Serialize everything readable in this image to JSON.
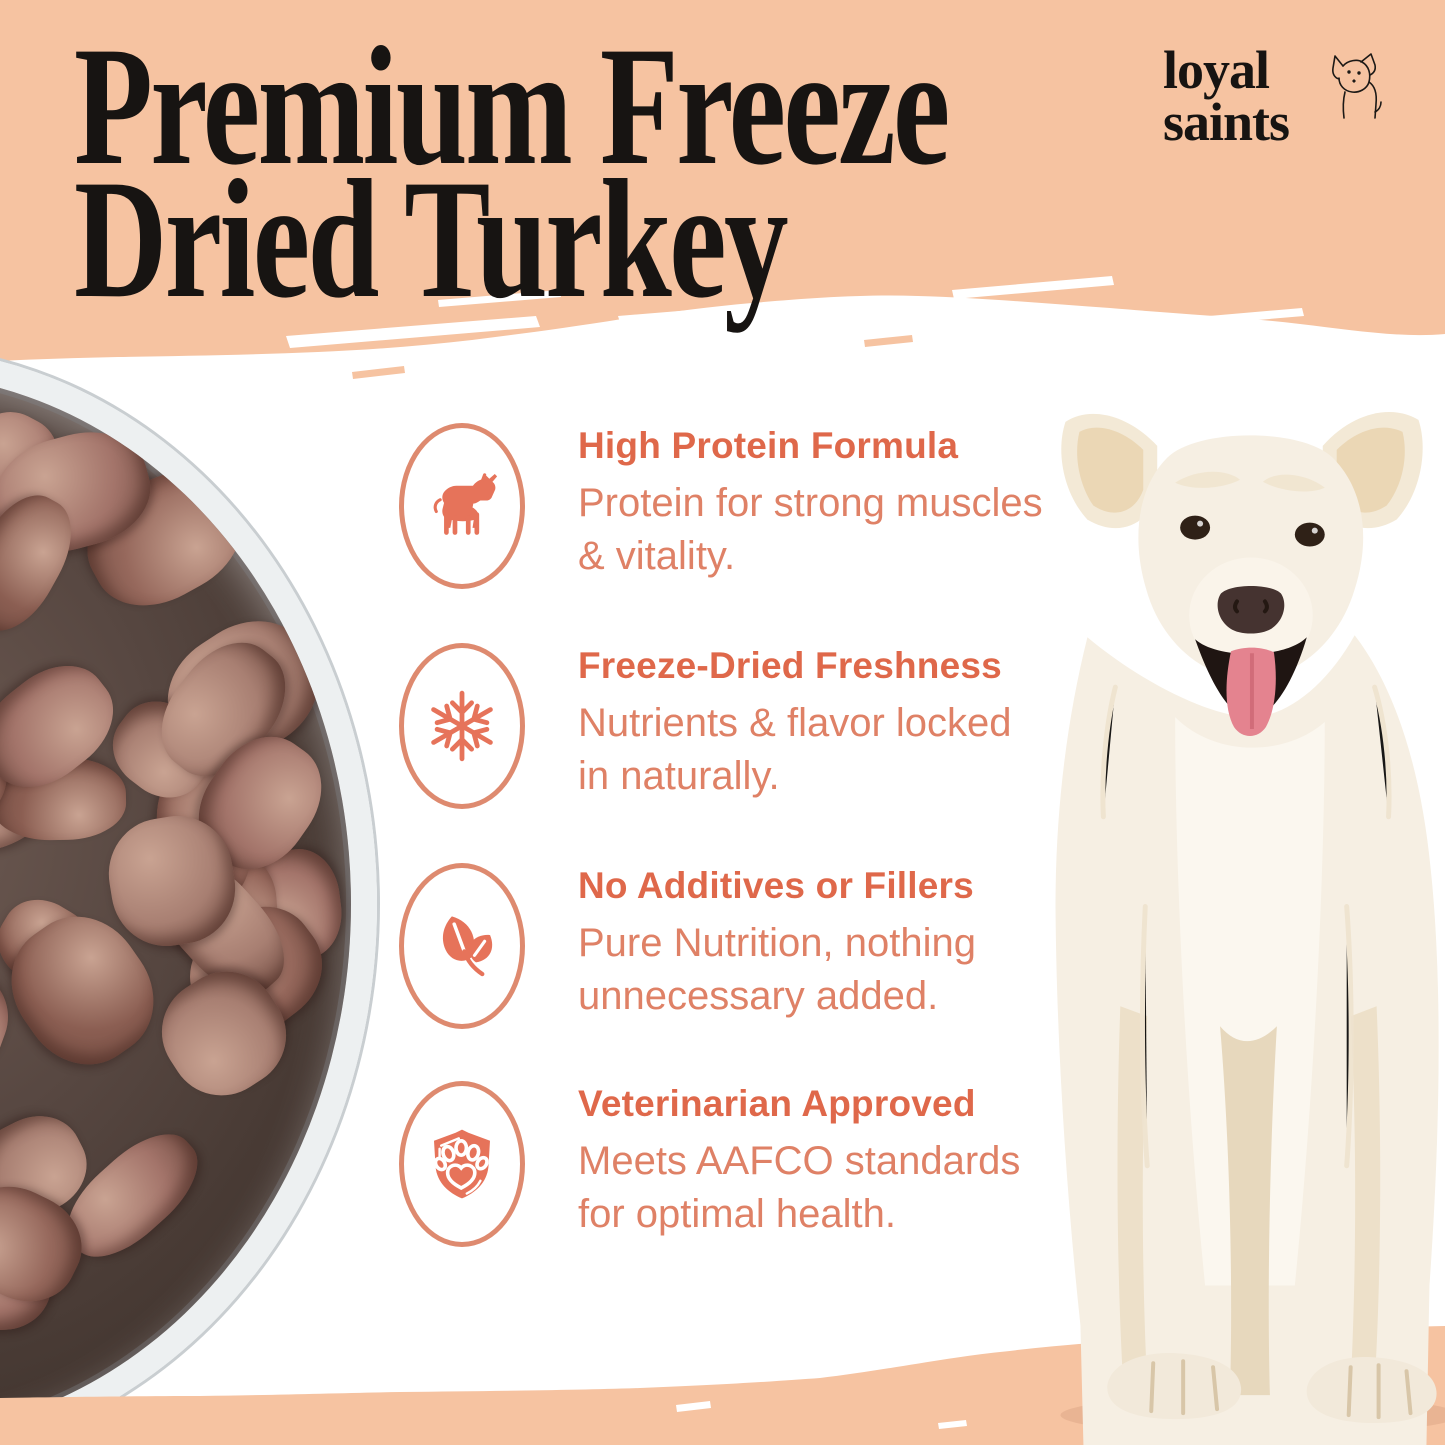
{
  "brand": {
    "line1": "loyal",
    "line2": "saints"
  },
  "title": {
    "line1": "Premium Freeze",
    "line2": "Dried Turkey"
  },
  "features": [
    {
      "icon": "cow-icon",
      "title": "High Protein Formula",
      "body_lines": [
        "Protein for strong muscles",
        "& vitality."
      ]
    },
    {
      "icon": "snowflake-icon",
      "title": "Freeze-Dried Freshness",
      "body_lines": [
        "Nutrients & flavor locked",
        "in naturally."
      ]
    },
    {
      "icon": "leaf-icon",
      "title": "No Additives or Fillers",
      "body_lines": [
        "Pure Nutrition, nothing",
        "unnecessary added."
      ]
    },
    {
      "icon": "shield-paw-icon",
      "title": "Veterinarian Approved",
      "body_lines": [
        "Meets AAFCO standards",
        "for optimal health."
      ]
    }
  ],
  "colors": {
    "peach": "#F6C3A1",
    "ink": "#171412",
    "accent": "#DF684A",
    "accent_soft": "#DF8166",
    "ring": "#DE8A6F",
    "glyph": "#E6735A",
    "glass": "#EDF0F1",
    "bowl_dark": "#463832",
    "dog_cream": "#F6EFE3",
    "tongue": "#E4838F"
  }
}
